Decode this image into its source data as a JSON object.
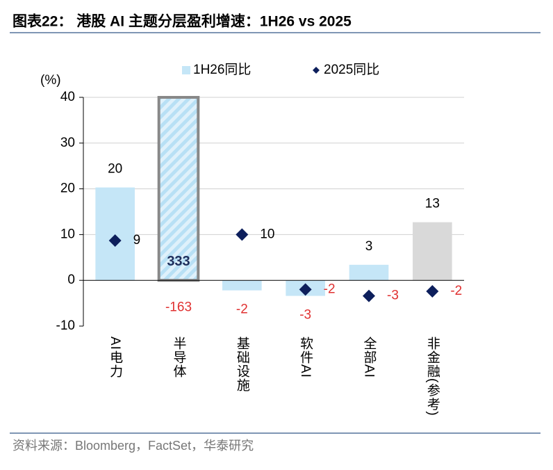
{
  "chart_data": {
    "type": "bar",
    "title": "图表22： 港股 AI 主题分层盈利增速：1H26 vs 2025",
    "source": "资料来源：Bloomberg，FactSet，华泰研究",
    "y_label": "(%)",
    "categories": [
      "AI电力",
      "半导体",
      "基础设施",
      "软件AI",
      "全部AI",
      "非金融(参考)"
    ],
    "series": [
      {
        "name": "1H26同比",
        "kind": "bar",
        "colors": [
          "#c5e6f7",
          "#c5e6f7",
          "#c5e6f7",
          "#c5e6f7",
          "#c5e6f7",
          "#d9d9d9"
        ],
        "values": [
          20.3,
          333,
          -2.2,
          -3.4,
          3.4,
          12.7
        ],
        "value_labels": [
          "20",
          "333",
          "-2",
          "-3",
          "3",
          "13"
        ]
      },
      {
        "name": "2025同比",
        "kind": "diamond",
        "color": "#0d1f5c",
        "values": [
          8.7,
          -163,
          10,
          -2,
          -3.4,
          -2.4
        ],
        "value_labels": [
          "9",
          "-163",
          "10",
          "-2",
          "-3",
          "-2"
        ]
      }
    ],
    "ylim": [
      -10,
      40
    ],
    "yticks": [
      -10,
      0,
      10,
      20,
      30,
      40
    ],
    "grid": true
  }
}
